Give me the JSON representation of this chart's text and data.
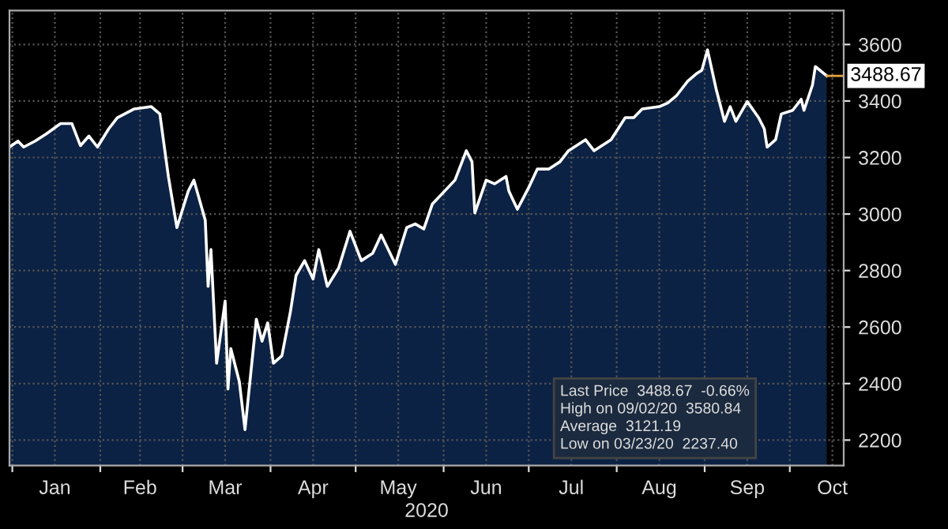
{
  "chart_data": {
    "type": "area",
    "xlabel": "2020",
    "x": [
      "2019-12-31",
      "2020-01-03",
      "2020-01-05",
      "2020-01-09",
      "2020-01-13",
      "2020-01-18",
      "2020-01-22",
      "2020-01-25",
      "2020-01-28",
      "2020-01-31",
      "2020-02-04",
      "2020-02-07",
      "2020-02-13",
      "2020-02-19",
      "2020-02-22",
      "2020-02-25",
      "2020-02-28",
      "2020-03-03",
      "2020-03-05",
      "2020-03-09",
      "2020-03-10",
      "2020-03-11",
      "2020-03-13",
      "2020-03-16",
      "2020-03-17",
      "2020-03-18",
      "2020-03-21",
      "2020-03-23",
      "2020-03-25",
      "2020-03-27",
      "2020-03-29",
      "2020-03-31",
      "2020-04-02",
      "2020-04-05",
      "2020-04-08",
      "2020-04-10",
      "2020-04-13",
      "2020-04-16",
      "2020-04-18",
      "2020-04-21",
      "2020-04-25",
      "2020-04-29",
      "2020-05-03",
      "2020-05-07",
      "2020-05-10",
      "2020-05-15",
      "2020-05-19",
      "2020-05-22",
      "2020-05-25",
      "2020-05-28",
      "2020-06-05",
      "2020-06-09",
      "2020-06-11",
      "2020-06-12",
      "2020-06-16",
      "2020-06-19",
      "2020-06-23",
      "2020-06-24",
      "2020-06-27",
      "2020-07-01",
      "2020-07-04",
      "2020-07-08",
      "2020-07-12",
      "2020-07-15",
      "2020-07-21",
      "2020-07-24",
      "2020-07-26",
      "2020-07-30",
      "2020-08-04",
      "2020-08-07",
      "2020-08-10",
      "2020-08-16",
      "2020-08-19",
      "2020-08-22",
      "2020-08-26",
      "2020-08-29",
      "2020-08-31",
      "2020-09-02",
      "2020-09-05",
      "2020-09-08",
      "2020-09-10",
      "2020-09-12",
      "2020-09-16",
      "2020-09-20",
      "2020-09-22",
      "2020-09-23",
      "2020-09-26",
      "2020-09-28",
      "2020-10-02",
      "2020-10-05",
      "2020-10-06",
      "2020-10-09",
      "2020-10-10",
      "2020-10-14"
    ],
    "series": [
      {
        "color": "#ffffff",
        "values": [
          3237,
          3258,
          3237,
          3258,
          3284,
          3320,
          3320,
          3242,
          3276,
          3237,
          3302,
          3341,
          3372,
          3380,
          3354,
          3133,
          2952,
          3081,
          3120,
          2978,
          2744,
          2874,
          2472,
          2692,
          2381,
          2524,
          2407,
          2237,
          2433,
          2628,
          2550,
          2615,
          2472,
          2498,
          2654,
          2783,
          2835,
          2770,
          2874,
          2744,
          2809,
          2939,
          2835,
          2861,
          2926,
          2822,
          2952,
          2965,
          2947,
          3035,
          3120,
          3224,
          3185,
          3004,
          3120,
          3107,
          3133,
          3081,
          3017,
          3094,
          3159,
          3159,
          3185,
          3224,
          3263,
          3224,
          3237,
          3263,
          3341,
          3341,
          3372,
          3380,
          3393,
          3418,
          3470,
          3496,
          3509,
          3581,
          3444,
          3328,
          3380,
          3328,
          3398,
          3341,
          3302,
          3237,
          3263,
          3354,
          3367,
          3406,
          3367,
          3457,
          3522,
          3489
        ]
      }
    ],
    "xlim": [
      "2019-12-31",
      "2020-10-20"
    ],
    "xticks": [
      {
        "value": "2020-01-01",
        "label": null
      },
      {
        "value": "2020-01-16",
        "label": "Jan"
      },
      {
        "value": "2020-02-01",
        "label": null
      },
      {
        "value": "2020-02-15",
        "label": "Feb"
      },
      {
        "value": "2020-03-01",
        "label": null
      },
      {
        "value": "2020-03-16",
        "label": "Mar"
      },
      {
        "value": "2020-04-01",
        "label": null
      },
      {
        "value": "2020-04-16",
        "label": "Apr"
      },
      {
        "value": "2020-05-01",
        "label": null
      },
      {
        "value": "2020-05-16",
        "label": "May"
      },
      {
        "value": "2020-06-01",
        "label": null
      },
      {
        "value": "2020-06-16",
        "label": "Jun"
      },
      {
        "value": "2020-07-01",
        "label": null
      },
      {
        "value": "2020-07-16",
        "label": "Jul"
      },
      {
        "value": "2020-08-01",
        "label": null
      },
      {
        "value": "2020-08-16",
        "label": "Aug"
      },
      {
        "value": "2020-09-01",
        "label": null
      },
      {
        "value": "2020-09-16",
        "label": "Sep"
      },
      {
        "value": "2020-10-01",
        "label": null
      },
      {
        "value": "2020-10-16",
        "label": "Oct"
      }
    ],
    "ylim": [
      2110,
      3720
    ],
    "yticks": [
      2200,
      2400,
      2600,
      2800,
      3000,
      3200,
      3400,
      3600
    ],
    "grid": true,
    "annotations": [
      {
        "text": "3488.67",
        "x": "2020-10-14",
        "y": 3489
      },
      "Last Price  3488.67  -0.66%",
      "High on 09/02/20  3580.84",
      "Average  3121.19",
      "Low on 03/23/20  2237.40"
    ]
  }
}
